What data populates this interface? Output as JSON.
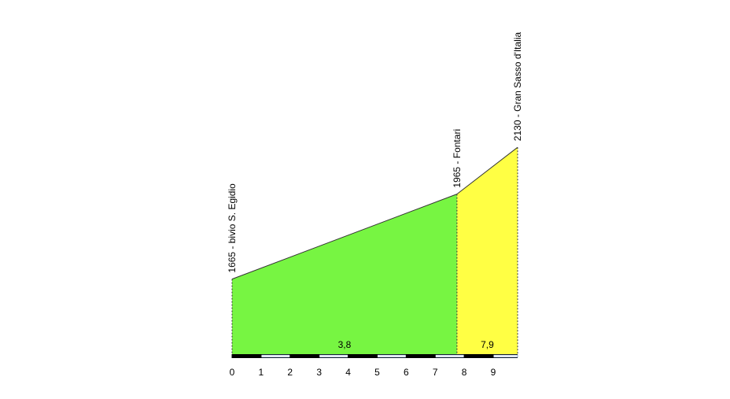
{
  "chart_data": {
    "type": "profile",
    "x": [
      0,
      7.75,
      9.84
    ],
    "values": [
      1665,
      1965,
      2130
    ],
    "point_labels": [
      "1665 - bivio S. Egidio",
      "1965 - Fontari",
      "2130 - Gran Sasso d'Italia"
    ],
    "segment_colors": [
      "#77f542",
      "#ffff44"
    ],
    "gradients": {
      "values": [
        3.8,
        7.9
      ],
      "value_labels": [
        "3,8",
        "7,9"
      ]
    },
    "xlim": [
      0,
      9.84
    ],
    "xticks": [
      0,
      1,
      2,
      3,
      4,
      5,
      6,
      7,
      8,
      9
    ],
    "ylim": [
      1400,
      2150
    ]
  }
}
